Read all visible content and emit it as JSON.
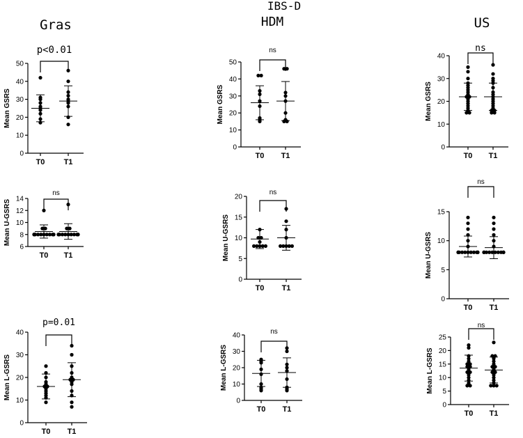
{
  "headers": {
    "top_title": "IBS-D",
    "columns": [
      "Gras",
      "HDM",
      "US"
    ]
  },
  "chart_data": [
    {
      "type": "scatter",
      "panel": "gras-gsrs",
      "ylabel": "Mean GSRS",
      "ylim": [
        0,
        50
      ],
      "yticks": [
        0,
        10,
        20,
        30,
        40,
        50
      ],
      "categories": [
        "T0",
        "T1"
      ],
      "sig": "p<0.01",
      "series": [
        {
          "name": "T0",
          "values": [
            42,
            31,
            30,
            28,
            26,
            25,
            24,
            22,
            19,
            17
          ]
        },
        {
          "name": "T1",
          "values": [
            46,
            40,
            34,
            32,
            30,
            29,
            28,
            26,
            20,
            16
          ]
        }
      ],
      "mean": [
        25,
        29
      ],
      "sd": [
        7.5,
        8.5
      ]
    },
    {
      "type": "scatter",
      "panel": "hdm-gsrs",
      "ylabel": "Mean GSRS",
      "ylim": [
        0,
        50
      ],
      "yticks": [
        0,
        10,
        20,
        30,
        40,
        50
      ],
      "categories": [
        "T0",
        "T1"
      ],
      "sig": "ns",
      "series": [
        {
          "name": "T0",
          "values": [
            42,
            42,
            33,
            31,
            27,
            24,
            17,
            16,
            15
          ]
        },
        {
          "name": "T1",
          "values": [
            46,
            46,
            32,
            30,
            27,
            20,
            16,
            15,
            15
          ]
        }
      ],
      "mean": [
        26,
        27
      ],
      "sd": [
        10,
        11.5
      ]
    },
    {
      "type": "scatter",
      "panel": "us-gsrs",
      "ylabel": "Mean GSRS",
      "ylim": [
        0,
        40
      ],
      "yticks": [
        0,
        10,
        20,
        30,
        40
      ],
      "categories": [
        "T0",
        "T1"
      ],
      "sig": "ns",
      "series": [
        {
          "name": "T0",
          "values": [
            35,
            33,
            30,
            28,
            27,
            26,
            25,
            24,
            23,
            22,
            22,
            21,
            20,
            19,
            18,
            17,
            16,
            15,
            15
          ]
        },
        {
          "name": "T1",
          "values": [
            36,
            32,
            30,
            29,
            28,
            26,
            24,
            23,
            22,
            21,
            20,
            19,
            18,
            17,
            16,
            16,
            15,
            15
          ]
        }
      ],
      "mean": [
        22,
        22
      ],
      "sd": [
        6,
        6
      ]
    },
    {
      "type": "scatter",
      "panel": "gras-ugsrs",
      "ylabel": "Mean U-GSRS",
      "ylim": [
        6,
        14
      ],
      "yticks": [
        6,
        8,
        10,
        12,
        14
      ],
      "categories": [
        "T0",
        "T1"
      ],
      "sig": "ns",
      "series": [
        {
          "name": "T0",
          "values": [
            12,
            9,
            9,
            8,
            8,
            8,
            8,
            8,
            8,
            8,
            8,
            8,
            8,
            8
          ]
        },
        {
          "name": "T1",
          "values": [
            13,
            9,
            9,
            8,
            8,
            8,
            8,
            8,
            8,
            8,
            8,
            8,
            8,
            8
          ]
        }
      ],
      "mean": [
        8.5,
        8.5
      ],
      "sd": [
        1.1,
        1.3
      ]
    },
    {
      "type": "scatter",
      "panel": "hdm-ugsrs",
      "ylabel": "Mean U-GSRS",
      "ylim": [
        0,
        20
      ],
      "yticks": [
        0,
        5,
        10,
        15,
        20
      ],
      "categories": [
        "T0",
        "T1"
      ],
      "sig": "ns",
      "series": [
        {
          "name": "T0",
          "values": [
            12,
            10,
            10,
            9,
            8,
            8,
            8,
            8,
            8
          ]
        },
        {
          "name": "T1",
          "values": [
            17,
            14,
            12,
            10,
            8,
            8,
            8,
            8,
            8
          ]
        }
      ],
      "mean": [
        9.7,
        10
      ],
      "sd": [
        2.3,
        3
      ]
    },
    {
      "type": "scatter",
      "panel": "us-ugsrs",
      "ylabel": "Mean U-GSRS",
      "ylim": [
        0,
        15
      ],
      "yticks": [
        0,
        5,
        10,
        15
      ],
      "categories": [
        "T0",
        "T1"
      ],
      "sig": "ns",
      "series": [
        {
          "name": "T0",
          "values": [
            14,
            13,
            12,
            11,
            10,
            9,
            8,
            8,
            8,
            8,
            8,
            8,
            8,
            8,
            8,
            8,
            8,
            8,
            8
          ]
        },
        {
          "name": "T1",
          "values": [
            14,
            13,
            12,
            11,
            10,
            9,
            8,
            8,
            8,
            8,
            8,
            8,
            8,
            8,
            8,
            8,
            8,
            8
          ]
        }
      ],
      "mean": [
        9,
        8.8
      ],
      "sd": [
        1.8,
        1.9
      ]
    },
    {
      "type": "scatter",
      "panel": "gras-lgsrs",
      "ylabel": "Mean L-GSRS",
      "ylim": [
        0,
        40
      ],
      "yticks": [
        0,
        10,
        20,
        30,
        40
      ],
      "categories": [
        "T0",
        "T1"
      ],
      "sig": "p=0.01",
      "series": [
        {
          "name": "T0",
          "values": [
            25,
            22,
            20,
            18,
            17,
            16,
            16,
            15,
            14,
            13,
            12,
            11,
            9
          ]
        },
        {
          "name": "T1",
          "values": [
            34,
            30,
            25,
            22,
            20,
            19,
            19,
            18,
            17,
            14,
            12,
            9,
            7
          ]
        }
      ],
      "mean": [
        16,
        19
      ],
      "sd": [
        5.5,
        7.5
      ]
    },
    {
      "type": "scatter",
      "panel": "hdm-lgsrs",
      "ylabel": "Mean L-GSRS",
      "ylim": [
        0,
        40
      ],
      "yticks": [
        0,
        10,
        20,
        30,
        40
      ],
      "categories": [
        "T0",
        "T1"
      ],
      "sig": "ns",
      "series": [
        {
          "name": "T0",
          "values": [
            25,
            24,
            23,
            19,
            16,
            10,
            8,
            7,
            6
          ]
        },
        {
          "name": "T1",
          "values": [
            32,
            30,
            22,
            20,
            18,
            13,
            8,
            7,
            6
          ]
        }
      ],
      "mean": [
        16.5,
        17
      ],
      "sd": [
        8,
        9
      ]
    },
    {
      "type": "scatter",
      "panel": "us-lgsrs",
      "ylabel": "Mean L-GSRS",
      "ylim": [
        0,
        25
      ],
      "yticks": [
        0,
        5,
        10,
        15,
        20,
        25
      ],
      "categories": [
        "T0",
        "T1"
      ],
      "sig": "ns",
      "series": [
        {
          "name": "T0",
          "values": [
            22,
            21,
            18,
            17,
            16,
            15,
            15,
            14,
            14,
            13,
            12,
            12,
            11,
            10,
            9,
            8,
            7,
            7
          ]
        },
        {
          "name": "T1",
          "values": [
            23,
            18,
            18,
            17,
            16,
            15,
            14,
            14,
            13,
            12,
            12,
            11,
            10,
            9,
            8,
            7,
            7,
            7
          ]
        }
      ],
      "mean": [
        13.5,
        12.8
      ],
      "sd": [
        4.8,
        4.8
      ]
    }
  ]
}
